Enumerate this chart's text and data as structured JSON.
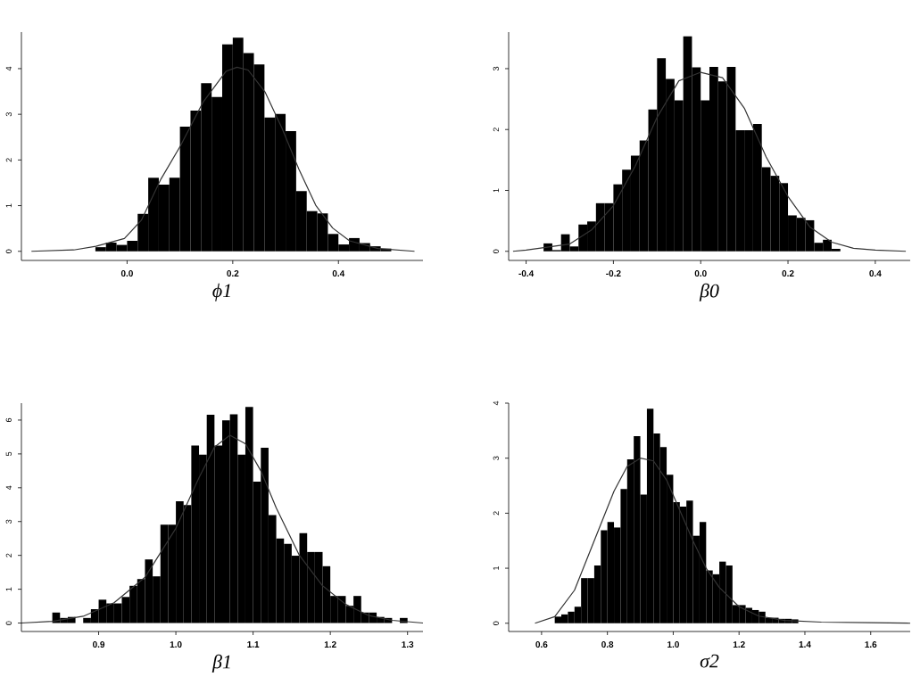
{
  "chart_data": [
    {
      "type": "histogram",
      "xlabel": "ϕ1",
      "xlim": [
        -0.2,
        0.56
      ],
      "ylim": [
        -0.2,
        4.8
      ],
      "xticks": [
        {
          "value": 0,
          "label": "0.0"
        },
        {
          "value": 0.2,
          "label": "0.2"
        },
        {
          "value": 0.4,
          "label": "0.4"
        }
      ],
      "yticks": [
        0,
        1,
        2,
        3,
        4
      ],
      "series": [
        {
          "color": "#000000",
          "bins": [
            -0.06,
            -0.04,
            -0.02,
            0.0,
            0.02,
            0.04,
            0.06,
            0.08,
            0.1,
            0.12,
            0.14,
            0.16,
            0.18,
            0.2,
            0.22,
            0.24,
            0.26,
            0.28,
            0.3,
            0.32,
            0.34,
            0.36,
            0.38,
            0.4,
            0.42,
            0.44,
            0.46,
            0.48,
            0.5
          ],
          "values": [
            0.09,
            0.19,
            0.14,
            0.23,
            0.82,
            1.61,
            1.46,
            1.61,
            2.73,
            3.08,
            3.68,
            3.38,
            4.53,
            4.68,
            4.34,
            4.09,
            2.93,
            3.01,
            2.63,
            1.32,
            0.88,
            0.83,
            0.38,
            0.15,
            0.29,
            0.18,
            0.11,
            0.06
          ]
        },
        {
          "type": "line",
          "color": "#333333",
          "x": [
            -0.181,
            -0.101,
            -0.059,
            -0.005,
            0.027,
            0.064,
            0.101,
            0.144,
            0.187,
            0.208,
            0.229,
            0.261,
            0.293,
            0.325,
            0.357,
            0.389,
            0.421,
            0.475,
            0.544
          ],
          "values": [
            0,
            0.03,
            0.11,
            0.28,
            0.68,
            1.58,
            2.31,
            3.27,
            3.94,
            4.03,
            3.97,
            3.49,
            2.7,
            1.8,
            1.01,
            0.51,
            0.23,
            0.06,
            0
          ]
        }
      ]
    },
    {
      "type": "histogram",
      "xlabel": "β0",
      "xlim": [
        -0.44,
        0.48
      ],
      "ylim": [
        -0.15,
        3.6
      ],
      "xticks": [
        {
          "value": -0.4,
          "label": "-0.4"
        },
        {
          "value": -0.2,
          "label": "-0.2"
        },
        {
          "value": 0,
          "label": "0.0"
        },
        {
          "value": 0.2,
          "label": "0.2"
        },
        {
          "value": 0.4,
          "label": "0.4"
        }
      ],
      "yticks": [
        0,
        1,
        2,
        3
      ],
      "series": [
        {
          "color": "#000000",
          "bins": [
            -0.36,
            -0.34,
            -0.32,
            -0.3,
            -0.28,
            -0.26,
            -0.24,
            -0.22,
            -0.2,
            -0.18,
            -0.16,
            -0.14,
            -0.12,
            -0.1,
            -0.08,
            -0.06,
            -0.04,
            -0.02,
            0.0,
            0.02,
            0.04,
            0.06,
            0.08,
            0.1,
            0.12,
            0.14,
            0.16,
            0.18,
            0.2,
            0.22,
            0.24,
            0.26,
            0.28,
            0.3,
            0.32
          ],
          "values": [
            0.13,
            0.02,
            0.28,
            0.08,
            0.44,
            0.49,
            0.79,
            0.79,
            1.1,
            1.34,
            1.57,
            1.82,
            2.33,
            3.17,
            2.83,
            2.48,
            3.53,
            3.02,
            2.48,
            3.03,
            2.79,
            3.03,
            1.99,
            1.99,
            2.09,
            1.38,
            1.24,
            1.12,
            0.59,
            0.55,
            0.51,
            0.14,
            0.19,
            0.04
          ]
        },
        {
          "type": "line",
          "color": "#333333",
          "x": [
            -0.43,
            -0.4,
            -0.3,
            -0.25,
            -0.2,
            -0.15,
            -0.1,
            -0.05,
            0,
            0.05,
            0.1,
            0.15,
            0.2,
            0.25,
            0.3,
            0.35,
            0.4,
            0.47
          ],
          "values": [
            0,
            0.02,
            0.12,
            0.35,
            0.75,
            1.4,
            2.2,
            2.8,
            2.94,
            2.85,
            2.35,
            1.55,
            0.9,
            0.4,
            0.15,
            0.05,
            0.02,
            0
          ]
        }
      ]
    },
    {
      "type": "histogram",
      "xlabel": "β1",
      "xlim": [
        0.8,
        1.32
      ],
      "ylim": [
        -0.25,
        6.5
      ],
      "xticks": [
        {
          "value": 0.9,
          "label": "0.9"
        },
        {
          "value": 1.0,
          "label": "1.0"
        },
        {
          "value": 1.1,
          "label": "1.1"
        },
        {
          "value": 1.2,
          "label": "1.2"
        },
        {
          "value": 1.3,
          "label": "1.3"
        }
      ],
      "yticks": [
        0,
        1,
        2,
        3,
        4,
        5,
        6
      ],
      "series": [
        {
          "color": "#000000",
          "bins": [
            0.84,
            0.85,
            0.86,
            0.87,
            0.88,
            0.89,
            0.9,
            0.91,
            0.92,
            0.93,
            0.94,
            0.95,
            0.96,
            0.97,
            0.98,
            0.99,
            1.0,
            1.01,
            1.02,
            1.03,
            1.04,
            1.05,
            1.06,
            1.07,
            1.08,
            1.09,
            1.1,
            1.11,
            1.12,
            1.13,
            1.14,
            1.15,
            1.16,
            1.17,
            1.18,
            1.19,
            1.2,
            1.21,
            1.22,
            1.23,
            1.24,
            1.25,
            1.26,
            1.27,
            1.28,
            1.29,
            1.3
          ],
          "values": [
            0.31,
            0.15,
            0.18,
            0,
            0.15,
            0.41,
            0.69,
            0.58,
            0.58,
            0.77,
            1.1,
            1.3,
            1.88,
            1.38,
            2.91,
            2.91,
            3.6,
            3.49,
            5.25,
            4.98,
            6.16,
            5.25,
            5.99,
            6.17,
            4.98,
            6.39,
            4.18,
            5.18,
            3.19,
            2.5,
            2.34,
            1.99,
            2.66,
            2.1,
            2.1,
            1.68,
            0.8,
            0.8,
            0.51,
            0.8,
            0.31,
            0.31,
            0.18,
            0.15,
            0,
            0.15
          ]
        },
        {
          "type": "line",
          "color": "#333333",
          "x": [
            0.8,
            0.84,
            0.88,
            0.92,
            0.96,
            1.0,
            1.03,
            1.05,
            1.07,
            1.09,
            1.11,
            1.13,
            1.16,
            1.19,
            1.22,
            1.25,
            1.28,
            1.32
          ],
          "values": [
            0,
            0.05,
            0.2,
            0.6,
            1.35,
            2.8,
            4.3,
            5.2,
            5.55,
            5.3,
            4.5,
            3.4,
            2.0,
            1.1,
            0.55,
            0.22,
            0.08,
            0
          ]
        }
      ]
    },
    {
      "type": "histogram",
      "xlabel": "σ2",
      "xlim": [
        0.5,
        1.72
      ],
      "ylim": [
        -0.15,
        4.0
      ],
      "xticks": [
        {
          "value": 0.6,
          "label": "0.6"
        },
        {
          "value": 0.8,
          "label": "0.8"
        },
        {
          "value": 1.0,
          "label": "1.0"
        },
        {
          "value": 1.2,
          "label": "1.2"
        },
        {
          "value": 1.4,
          "label": "1.4"
        },
        {
          "value": 1.6,
          "label": "1.6"
        }
      ],
      "yticks": [
        0,
        1,
        2,
        3,
        4
      ],
      "series": [
        {
          "color": "#000000",
          "bins": [
            0.64,
            0.66,
            0.68,
            0.7,
            0.72,
            0.74,
            0.76,
            0.78,
            0.8,
            0.82,
            0.84,
            0.86,
            0.88,
            0.9,
            0.92,
            0.94,
            0.96,
            0.98,
            1.0,
            1.02,
            1.04,
            1.06,
            1.08,
            1.1,
            1.12,
            1.14,
            1.16,
            1.18,
            1.2,
            1.22,
            1.24,
            1.26,
            1.28,
            1.3,
            1.32,
            1.34,
            1.36,
            1.38
          ],
          "values": [
            0.12,
            0.16,
            0.21,
            0.3,
            0.82,
            0.82,
            1.05,
            1.69,
            1.84,
            1.74,
            2.44,
            2.98,
            3.4,
            2.34,
            3.9,
            3.45,
            3.2,
            2.7,
            2.2,
            2.12,
            2.23,
            1.59,
            1.84,
            0.96,
            0.89,
            1.12,
            1.05,
            0.33,
            0.33,
            0.28,
            0.24,
            0.21,
            0.1,
            0.1,
            0.08,
            0.08,
            0.07
          ]
        },
        {
          "type": "line",
          "color": "#333333",
          "x": [
            0.58,
            0.64,
            0.7,
            0.76,
            0.82,
            0.86,
            0.9,
            0.94,
            0.98,
            1.02,
            1.06,
            1.1,
            1.14,
            1.2,
            1.26,
            1.34,
            1.45,
            1.6,
            1.72
          ],
          "values": [
            0,
            0.12,
            0.6,
            1.5,
            2.4,
            2.85,
            3.0,
            2.95,
            2.6,
            2.05,
            1.5,
            1.0,
            0.65,
            0.3,
            0.13,
            0.05,
            0.02,
            0.01,
            0
          ]
        }
      ]
    }
  ]
}
